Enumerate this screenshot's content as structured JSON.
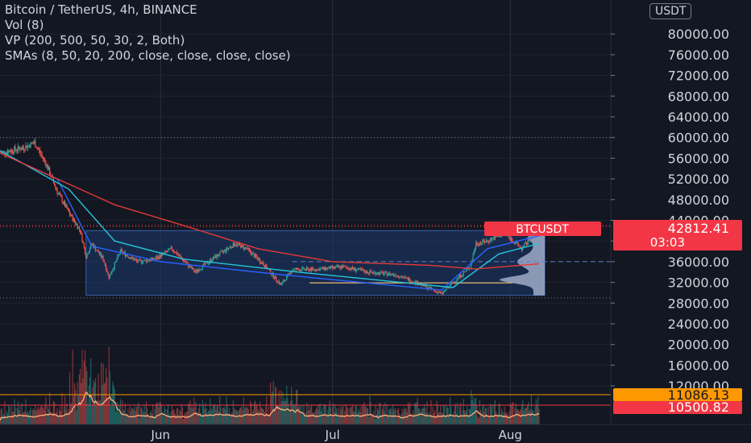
{
  "legend": {
    "symbol_line": "Bitcoin / TetherUS, 4h, BINANCE",
    "vol_line": "Vol (8)",
    "vp_line": "VP (200, 500, 50, 30, 2, Both)",
    "sma_line": "SMAs (8, 50, 20, 200, close, close, close, close)"
  },
  "price_axis": {
    "unit": "USDT",
    "ticks": [
      "80000.00",
      "76000.00",
      "72000.00",
      "68000.00",
      "64000.00",
      "60000.00",
      "56000.00",
      "52000.00",
      "48000.00",
      "44000.00",
      "40000.00",
      "36000.00",
      "32000.00",
      "28000.00",
      "24000.00",
      "20000.00",
      "16000.00",
      "12000.00"
    ]
  },
  "time_axis": {
    "labels": [
      "Jun",
      "Jul",
      "Aug"
    ]
  },
  "last_price": {
    "symbol": "BTCUSDT",
    "price": "42812.41",
    "countdown": "03:03"
  },
  "volume_labels": {
    "orange": "11086.13",
    "red": "10500.82"
  },
  "colors": {
    "background": "#131722",
    "up": "#26a69a",
    "down": "#ef5350",
    "sma_fast": "#2962ff",
    "sma_mid": "#26c6da",
    "sma_slow": "#e53935",
    "vp_box": "#1e3a6e",
    "vp_profile": "#b0bed9",
    "poc": "#c8a06a",
    "volume_ma": "#ffab78",
    "orange_label": "#ff9800",
    "red_label": "#f23645"
  },
  "chart_data": {
    "type": "candlestick",
    "title": "Bitcoin / TetherUS, 4h, BINANCE",
    "x_range": [
      "2021-05-04",
      "2021-08-07"
    ],
    "x_ticks": [
      "Jun",
      "Jul",
      "Aug"
    ],
    "ylim": [
      12000,
      84000
    ],
    "price_path": [
      [
        "2021-05-04",
        57000
      ],
      [
        "2021-05-08",
        58000
      ],
      [
        "2021-05-10",
        59000
      ],
      [
        "2021-05-12",
        55000
      ],
      [
        "2021-05-14",
        49500
      ],
      [
        "2021-05-16",
        45500
      ],
      [
        "2021-05-18",
        42000
      ],
      [
        "2021-05-19",
        37000
      ],
      [
        "2021-05-20",
        39500
      ],
      [
        "2021-05-22",
        36500
      ],
      [
        "2021-05-23",
        33000
      ],
      [
        "2021-05-25",
        38000
      ],
      [
        "2021-05-28",
        36000
      ],
      [
        "2021-05-31",
        36500
      ],
      [
        "2021-06-03",
        38500
      ],
      [
        "2021-06-07",
        34000
      ],
      [
        "2021-06-10",
        36500
      ],
      [
        "2021-06-14",
        39500
      ],
      [
        "2021-06-16",
        38500
      ],
      [
        "2021-06-19",
        35500
      ],
      [
        "2021-06-22",
        31500
      ],
      [
        "2021-06-24",
        34500
      ],
      [
        "2021-06-28",
        34500
      ],
      [
        "2021-07-03",
        35000
      ],
      [
        "2021-07-07",
        34000
      ],
      [
        "2021-07-12",
        33500
      ],
      [
        "2021-07-16",
        31800
      ],
      [
        "2021-07-20",
        29800
      ],
      [
        "2021-07-22",
        32000
      ],
      [
        "2021-07-25",
        35000
      ],
      [
        "2021-07-26",
        39500
      ],
      [
        "2021-07-28",
        40000
      ],
      [
        "2021-07-31",
        41500
      ],
      [
        "2021-08-03",
        38500
      ],
      [
        "2021-08-04",
        39800
      ],
      [
        "2021-08-06",
        42812
      ]
    ],
    "sma_series": [
      {
        "name": "SMA 8",
        "values": [
          [
            "2021-05-04",
            57000
          ],
          [
            "2021-05-14",
            52000
          ],
          [
            "2021-05-20",
            39000
          ],
          [
            "2021-06-01",
            36000
          ],
          [
            "2021-06-22",
            33500
          ],
          [
            "2021-07-20",
            30500
          ],
          [
            "2021-07-28",
            38500
          ],
          [
            "2021-08-06",
            41000
          ]
        ]
      },
      {
        "name": "SMA 20",
        "values": [
          [
            "2021-05-04",
            57500
          ],
          [
            "2021-05-16",
            50000
          ],
          [
            "2021-05-24",
            40000
          ],
          [
            "2021-06-05",
            36500
          ],
          [
            "2021-06-25",
            34000
          ],
          [
            "2021-07-22",
            31000
          ],
          [
            "2021-07-30",
            37500
          ],
          [
            "2021-08-06",
            39500
          ]
        ]
      },
      {
        "name": "SMA 200",
        "values": [
          [
            "2021-05-04",
            57000
          ],
          [
            "2021-05-14",
            52000
          ],
          [
            "2021-05-24",
            47000
          ],
          [
            "2021-06-05",
            43000
          ],
          [
            "2021-06-18",
            38500
          ],
          [
            "2021-07-01",
            36000
          ],
          [
            "2021-07-18",
            35300
          ],
          [
            "2021-07-26",
            34600
          ],
          [
            "2021-08-06",
            35600
          ]
        ]
      }
    ],
    "volume_profile": {
      "range_low": 29500,
      "range_high": 42000,
      "value_area_mid": 36000,
      "poc": 31900
    },
    "horizontal_levels": [
      60000,
      43000,
      42812,
      29000
    ],
    "volume_levels": [
      11086.13,
      10500.82
    ]
  }
}
